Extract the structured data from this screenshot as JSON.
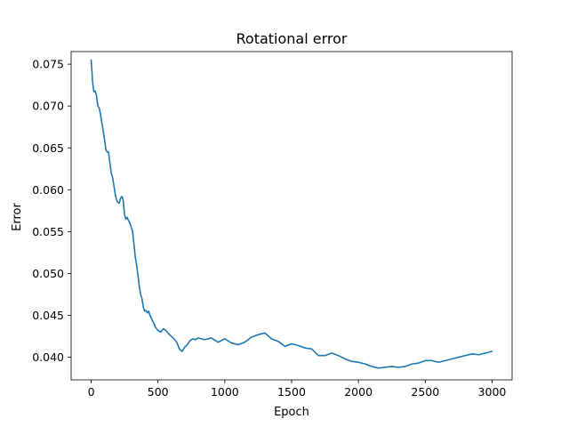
{
  "chart_data": {
    "type": "line",
    "title": "Rotational error",
    "xlabel": "Epoch",
    "ylabel": "Error",
    "xlim": [
      -150,
      3150
    ],
    "ylim": [
      0.0373,
      0.0765
    ],
    "xticks": [
      0,
      500,
      1000,
      1500,
      2000,
      2500,
      3000
    ],
    "xtick_labels": [
      "0",
      "500",
      "1000",
      "1500",
      "2000",
      "2500",
      "3000"
    ],
    "yticks": [
      0.04,
      0.045,
      0.05,
      0.055,
      0.06,
      0.065,
      0.07,
      0.075
    ],
    "ytick_labels": [
      "0.040",
      "0.045",
      "0.050",
      "0.055",
      "0.060",
      "0.065",
      "0.070",
      "0.075"
    ],
    "grid": false,
    "legend": "none",
    "series": [
      {
        "color": "#1f77b4",
        "x": [
          0,
          10,
          20,
          30,
          40,
          50,
          60,
          70,
          80,
          90,
          100,
          110,
          120,
          130,
          140,
          150,
          160,
          170,
          180,
          190,
          200,
          210,
          220,
          230,
          240,
          250,
          260,
          270,
          280,
          290,
          300,
          310,
          320,
          330,
          340,
          350,
          360,
          370,
          380,
          390,
          400,
          410,
          420,
          430,
          440,
          450,
          460,
          470,
          480,
          490,
          500,
          520,
          540,
          560,
          580,
          600,
          620,
          640,
          660,
          680,
          700,
          720,
          740,
          760,
          780,
          800,
          850,
          900,
          950,
          1000,
          1050,
          1100,
          1150,
          1200,
          1250,
          1300,
          1350,
          1400,
          1450,
          1500,
          1550,
          1600,
          1650,
          1700,
          1750,
          1800,
          1850,
          1900,
          1950,
          2000,
          2050,
          2100,
          2150,
          2200,
          2250,
          2300,
          2350,
          2400,
          2450,
          2500,
          2550,
          2600,
          2650,
          2700,
          2750,
          2800,
          2850,
          2900,
          2950,
          3000
        ],
        "y": [
          0.0755,
          0.073,
          0.0717,
          0.0718,
          0.0712,
          0.07,
          0.0698,
          0.069,
          0.068,
          0.067,
          0.066,
          0.0648,
          0.0645,
          0.0645,
          0.0632,
          0.062,
          0.0615,
          0.0605,
          0.0595,
          0.0588,
          0.0585,
          0.0584,
          0.059,
          0.0592,
          0.0587,
          0.057,
          0.0565,
          0.0567,
          0.0563,
          0.056,
          0.0555,
          0.055,
          0.0535,
          0.052,
          0.051,
          0.0498,
          0.0485,
          0.0475,
          0.047,
          0.046,
          0.0455,
          0.0456,
          0.0453,
          0.0455,
          0.045,
          0.0447,
          0.0443,
          0.044,
          0.0436,
          0.0434,
          0.0432,
          0.043,
          0.0434,
          0.0432,
          0.0428,
          0.0425,
          0.0422,
          0.0418,
          0.041,
          0.0407,
          0.0412,
          0.0415,
          0.042,
          0.0422,
          0.0421,
          0.0423,
          0.0421,
          0.0423,
          0.0418,
          0.0422,
          0.0417,
          0.0415,
          0.0418,
          0.0424,
          0.0427,
          0.0429,
          0.0422,
          0.0419,
          0.0413,
          0.0416,
          0.0414,
          0.0411,
          0.041,
          0.0402,
          0.0402,
          0.0405,
          0.0402,
          0.0398,
          0.0395,
          0.0394,
          0.0392,
          0.0389,
          0.0387,
          0.0388,
          0.0389,
          0.0388,
          0.0389,
          0.0392,
          0.0393,
          0.0396,
          0.0396,
          0.0394,
          0.0396,
          0.0398,
          0.04,
          0.0402,
          0.0404,
          0.0403,
          0.0405,
          0.0407
        ]
      }
    ]
  }
}
